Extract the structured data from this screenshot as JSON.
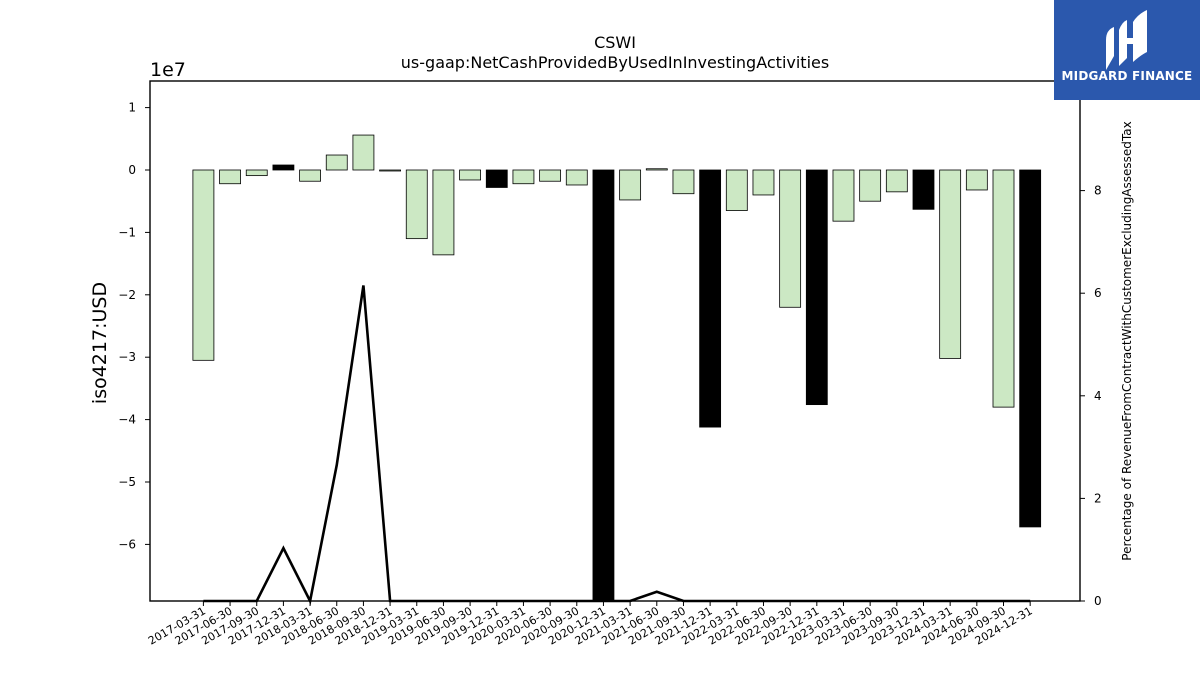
{
  "chart_data": {
    "type": "bar",
    "title": "CSWI",
    "subtitle": "us-gaap:NetCashProvidedByUsedInInvestingActivities",
    "ylabel": "iso4217:USD",
    "y_offset_label": "1e7",
    "y2label": "Percentage of RevenueFromContractWithCustomerExcludingAssessedTax",
    "ylim": [
      -6.9,
      1.4
    ],
    "y2lim": [
      0,
      10.1
    ],
    "yticks": [
      1,
      0,
      -1,
      -2,
      -3,
      -4,
      -5,
      -6
    ],
    "ytick_labels": [
      "1",
      "0",
      "−1",
      "−2",
      "−3",
      "−4",
      "−5",
      "−6"
    ],
    "y2ticks": [
      0,
      2,
      4,
      6,
      8
    ],
    "categories": [
      "2017-03-31",
      "2017-06-30",
      "2017-09-30",
      "2017-12-31",
      "2018-03-31",
      "2018-06-30",
      "2018-09-30",
      "2018-12-31",
      "2019-03-31",
      "2019-06-30",
      "2019-09-30",
      "2019-12-31",
      "2020-03-31",
      "2020-06-30",
      "2020-09-30",
      "2020-12-31",
      "2021-03-31",
      "2021-06-30",
      "2021-09-30",
      "2021-12-31",
      "2022-03-31",
      "2022-06-30",
      "2022-09-30",
      "2022-12-31",
      "2023-03-31",
      "2023-06-30",
      "2023-09-30",
      "2023-12-31",
      "2024-03-31",
      "2024-06-30",
      "2024-09-30",
      "2024-12-31"
    ],
    "series": [
      {
        "axis": "left",
        "kind": "bar",
        "values": [
          -3.05,
          -0.22,
          -0.09,
          0.08,
          -0.18,
          0.24,
          0.56,
          0.0,
          -1.1,
          -1.36,
          -0.16,
          -0.28,
          -0.22,
          -0.18,
          -0.24,
          -6.9,
          -0.48,
          0.02,
          -0.38,
          -4.12,
          -0.65,
          -0.4,
          -2.2,
          -3.76,
          -0.82,
          -0.5,
          -0.35,
          -0.63,
          -3.02,
          -0.32,
          -3.8,
          -5.72
        ],
        "highlight": [
          false,
          false,
          false,
          true,
          false,
          false,
          false,
          false,
          false,
          false,
          false,
          true,
          false,
          false,
          false,
          true,
          false,
          false,
          false,
          true,
          false,
          false,
          false,
          true,
          false,
          false,
          false,
          true,
          false,
          false,
          false,
          true
        ]
      },
      {
        "axis": "right",
        "kind": "line",
        "values": [
          0,
          0,
          0,
          1.03,
          0,
          2.65,
          6.15,
          0,
          0,
          0,
          0,
          0,
          0,
          0,
          0,
          0,
          0,
          0.18,
          0,
          0,
          0,
          0,
          0,
          0,
          0,
          0,
          0,
          0,
          0,
          0,
          0,
          0
        ]
      }
    ],
    "colors": {
      "bar": "#cce8c4",
      "bar_highlight": "#000000",
      "bar_edge": "#000000",
      "line": "#000000"
    },
    "grid": false
  },
  "logo": {
    "text": "MIDGARD FINANCE"
  }
}
